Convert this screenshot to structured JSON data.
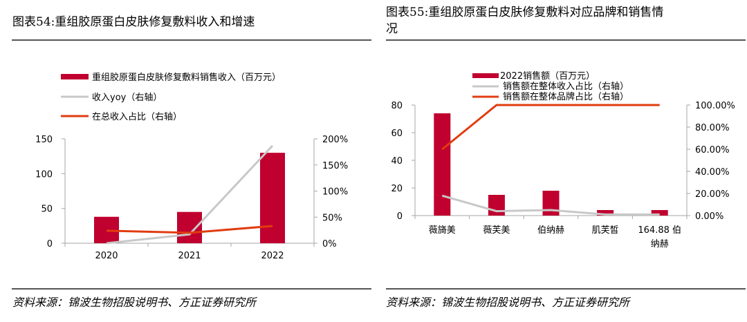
{
  "colors": {
    "bar": "#C0002F",
    "gray": "#C8C8C8",
    "orange": "#E03C10",
    "axis": "#A6A6A6"
  },
  "chart_data": [
    {
      "type": "bar+line",
      "title": "图表54:重组胶原蛋白皮肤修复敷料收入和增速",
      "source": "资料来源：锦波生物招股说明书、方正证券研究所",
      "categories": [
        "2020",
        "2021",
        "2022"
      ],
      "left_axis": {
        "ylim": [
          0,
          150
        ],
        "ticks": [
          "0",
          "50",
          "100",
          "150"
        ]
      },
      "right_axis": {
        "ylim": [
          0,
          200
        ],
        "ticks": [
          "0%",
          "50%",
          "100%",
          "150%",
          "200%"
        ]
      },
      "legend_placement": "top",
      "grid": false,
      "series": [
        {
          "name": "重组胶原蛋白皮肤修复敷料销售收入（百万元）",
          "type": "bar",
          "axis": "left",
          "values": [
            38,
            45,
            130
          ]
        },
        {
          "name": "收入yoy（右轴）",
          "type": "line",
          "axis": "right",
          "values": [
            0,
            17,
            187
          ]
        },
        {
          "name": "在总收入占比（右轴）",
          "type": "line",
          "axis": "right",
          "values": [
            24,
            20,
            33
          ]
        }
      ]
    },
    {
      "type": "bar+line",
      "title": "图表55:重组胶原蛋白皮肤修复敷料对应品牌和销售情况",
      "source": "资料来源：锦波生物招股说明书、方正证券研究所",
      "categories": [
        "薇旖美",
        "薇芙美",
        "伯纳赫",
        "肌芙皙",
        "164.88 伯纳赫"
      ],
      "left_axis": {
        "ylim": [
          0,
          80
        ],
        "ticks": [
          "0",
          "20",
          "40",
          "60",
          "80"
        ]
      },
      "right_axis": {
        "ylim": [
          0,
          100
        ],
        "ticks": [
          "0.00%",
          "20.00%",
          "40.00%",
          "60.00%",
          "80.00%",
          "100.00%"
        ]
      },
      "legend_placement": "top",
      "grid": false,
      "series": [
        {
          "name": "2022销售额（百万元）",
          "type": "bar",
          "axis": "left",
          "values": [
            74,
            15,
            18,
            4,
            4
          ]
        },
        {
          "name": "销售额在整体收入占比（右轴）",
          "type": "line",
          "axis": "right",
          "values": [
            18,
            4,
            5,
            1,
            1
          ]
        },
        {
          "name": "销售额在整体品牌占比（右轴）",
          "type": "line",
          "axis": "right",
          "values": [
            60,
            100,
            100,
            100,
            100
          ]
        }
      ]
    }
  ]
}
